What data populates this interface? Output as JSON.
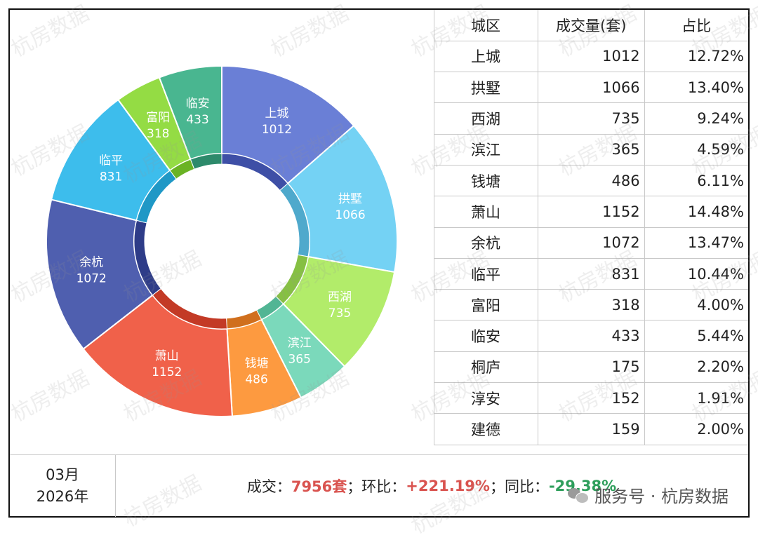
{
  "watermark_text": "杭房数据",
  "table": {
    "headers": [
      "城区",
      "成交量(套)",
      "占比"
    ],
    "rows": [
      [
        "上城",
        "1012",
        "12.72%"
      ],
      [
        "拱墅",
        "1066",
        "13.40%"
      ],
      [
        "西湖",
        "735",
        "9.24%"
      ],
      [
        "滨江",
        "365",
        "4.59%"
      ],
      [
        "钱塘",
        "486",
        "6.11%"
      ],
      [
        "萧山",
        "1152",
        "14.48%"
      ],
      [
        "余杭",
        "1072",
        "13.47%"
      ],
      [
        "临平",
        "831",
        "10.44%"
      ],
      [
        "富阳",
        "318",
        "4.00%"
      ],
      [
        "临安",
        "433",
        "5.44%"
      ],
      [
        "桐庐",
        "175",
        "2.20%"
      ],
      [
        "淳安",
        "152",
        "1.91%"
      ],
      [
        "建德",
        "159",
        "2.00%"
      ]
    ]
  },
  "date": {
    "month": "03月",
    "year": "2026年"
  },
  "summary": {
    "deal_label": "成交：",
    "deal_value": "7956套",
    "sep1": "；环比：",
    "mom_value": "+221.19%",
    "sep2": "；同比：",
    "yoy_value": "-29.38%"
  },
  "brand": {
    "text": "服务号 · 杭房数据"
  },
  "chart_data": {
    "type": "pie",
    "donut": true,
    "categories": [
      "上城",
      "拱墅",
      "西湖",
      "滨江",
      "钱塘",
      "萧山",
      "余杭",
      "临平",
      "富阳",
      "临安"
    ],
    "values": [
      1012,
      1066,
      735,
      365,
      486,
      1152,
      1072,
      831,
      318,
      433
    ],
    "colors": [
      "#6a7fd6",
      "#74d2f4",
      "#b2ec6a",
      "#7bd9bb",
      "#fd9a40",
      "#f0614a",
      "#4f5faf",
      "#3dbdec",
      "#94dc44",
      "#49b690"
    ],
    "inner_colors": [
      "#3e4fa6",
      "#4fa9cc",
      "#86c043",
      "#52b594",
      "#d06f1d",
      "#c33a26",
      "#2e3c88",
      "#1f98c6",
      "#6ab324",
      "#2d8a6b"
    ]
  }
}
